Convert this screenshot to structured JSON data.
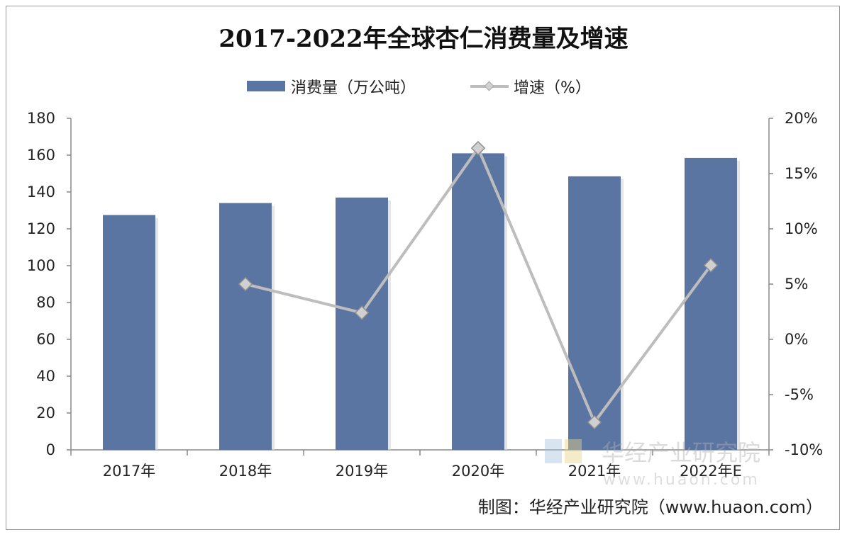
{
  "chart_data": {
    "type": "bar+line",
    "title": "2017-2022年全球杏仁消费量及增速",
    "categories": [
      "2017年",
      "2018年",
      "2019年",
      "2020年",
      "2021年",
      "2022年E"
    ],
    "series": [
      {
        "name": "消费量（万公吨）",
        "type": "bar",
        "axis": "left",
        "color": "#5b75a3",
        "values": [
          127.5,
          134,
          137,
          161,
          148.5,
          158.5
        ]
      },
      {
        "name": "增速（%）",
        "type": "line",
        "axis": "right",
        "color": "#bdbdbd",
        "marker_color": "#d0d0d0",
        "values": [
          null,
          5.0,
          2.4,
          17.3,
          -7.5,
          6.7
        ]
      }
    ],
    "y_left": {
      "min": 0,
      "max": 180,
      "ticks": [
        "0",
        "20",
        "40",
        "60",
        "80",
        "100",
        "120",
        "140",
        "160",
        "180"
      ]
    },
    "y_right": {
      "min": -10,
      "max": 20,
      "ticks": [
        "-10%",
        "-5%",
        "0%",
        "5%",
        "10%",
        "15%",
        "20%"
      ]
    },
    "grid": false,
    "legend_position": "top-center",
    "source": "制图：华经产业研究院（www.huaon.com）",
    "watermark": {
      "text_cn": "华经产业研究院",
      "text_en": "www.huaon.com"
    }
  }
}
